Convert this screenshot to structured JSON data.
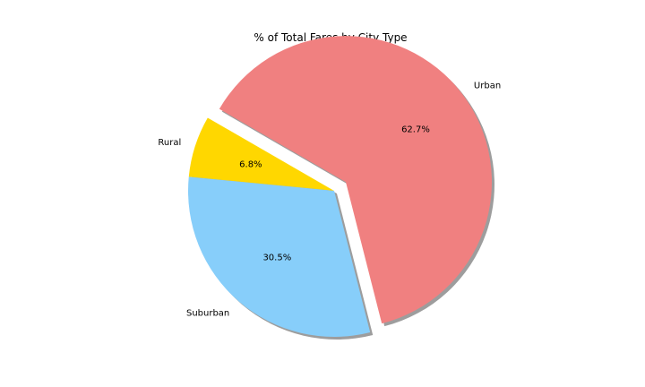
{
  "chart_data": {
    "type": "pie",
    "title": "% of Total Fares by City Type",
    "slices": [
      {
        "label": "Rural",
        "value": 6.8,
        "pct_label": "6.8%",
        "color": "#ffd700",
        "exploded": false
      },
      {
        "label": "Suburban",
        "value": 30.5,
        "pct_label": "30.5%",
        "color": "#87cefa",
        "exploded": false
      },
      {
        "label": "Urban",
        "value": 62.7,
        "pct_label": "62.7%",
        "color": "#f08080",
        "exploded": true
      }
    ],
    "start_angle_deg": 150,
    "shadow": true,
    "legend": "none"
  }
}
